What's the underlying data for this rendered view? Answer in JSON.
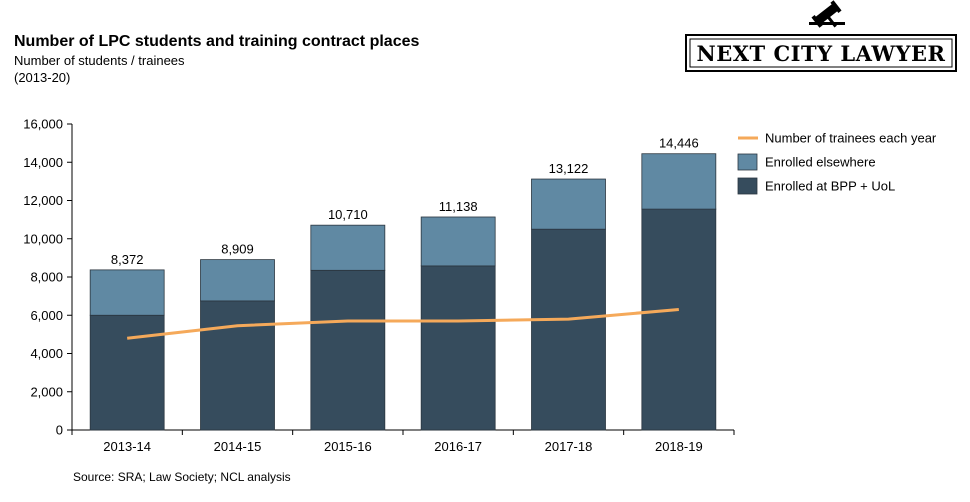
{
  "brand": {
    "name": "NEXT CITY LAWYER"
  },
  "chart_data": {
    "type": "bar",
    "title": "Number of LPC students and training contract places",
    "subtitle": "Number of students / trainees",
    "period": "(2013-20)",
    "categories": [
      "2013-14",
      "2014-15",
      "2015-16",
      "2016-17",
      "2017-18",
      "2018-19"
    ],
    "series": [
      {
        "name": "Enrolled at BPP + UoL",
        "type": "bar",
        "stack": "total",
        "color": "#364c5d",
        "values": [
          6000,
          6750,
          8350,
          8580,
          10500,
          11550
        ]
      },
      {
        "name": "Enrolled elsewhere",
        "type": "bar",
        "stack": "total",
        "color": "#6089a3",
        "values": [
          2372,
          2159,
          2360,
          2558,
          2622,
          2896
        ]
      },
      {
        "name": "Number of trainees each year",
        "type": "line",
        "color": "#f5a95a",
        "values": [
          4800,
          5450,
          5700,
          5700,
          5800,
          6300
        ]
      }
    ],
    "totals": [
      "8,372",
      "8,909",
      "10,710",
      "11,138",
      "13,122",
      "14,446"
    ],
    "total_values": [
      8372,
      8909,
      10710,
      11138,
      13122,
      14446
    ],
    "legend_order": [
      "Number of trainees each year",
      "Enrolled elsewhere",
      "Enrolled at BPP + UoL"
    ],
    "ylim": [
      0,
      16000
    ],
    "yticks": [
      0,
      2000,
      4000,
      6000,
      8000,
      10000,
      12000,
      14000,
      16000
    ],
    "ytick_labels": [
      "0",
      "2,000",
      "4,000",
      "6,000",
      "8,000",
      "10,000",
      "12,000",
      "14,000",
      "16,000"
    ],
    "xlabel": "",
    "ylabel": "",
    "grid": false,
    "legend_position": "top-right"
  },
  "source": "Source: SRA; Law Society; NCL analysis"
}
